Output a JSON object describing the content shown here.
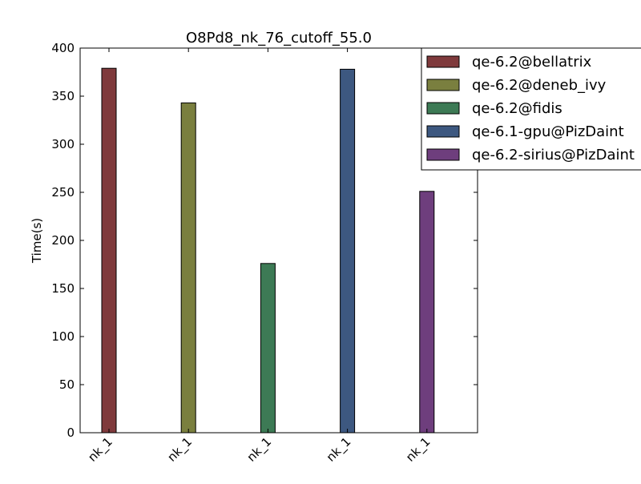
{
  "chart_data": {
    "type": "bar",
    "title": "O8Pd8_nk_76_cutoff_55.0",
    "xlabel": "",
    "ylabel": "Time(s)",
    "ylim": [
      0,
      400
    ],
    "yticks": [
      0,
      50,
      100,
      150,
      200,
      250,
      300,
      350,
      400
    ],
    "categories": [
      "nk_1",
      "nk_1",
      "nk_1",
      "nk_1",
      "nk_1"
    ],
    "grid": false,
    "legend_position": "top-right",
    "series": [
      {
        "name": "qe-6.2@bellatrix",
        "color": "#7f3a3c",
        "values": [
          379,
          null,
          null,
          null,
          null
        ]
      },
      {
        "name": "qe-6.2@deneb_ivy",
        "color": "#7a7f3f",
        "values": [
          null,
          343,
          null,
          null,
          null
        ]
      },
      {
        "name": "qe-6.2@fidis",
        "color": "#3d7a55",
        "values": [
          null,
          null,
          176,
          null,
          null
        ]
      },
      {
        "name": "qe-6.1-gpu@PizDaint",
        "color": "#3d5880",
        "values": [
          null,
          null,
          null,
          378,
          null
        ]
      },
      {
        "name": "qe-6.2-sirius@PizDaint",
        "color": "#6e3e7d",
        "values": [
          null,
          null,
          null,
          null,
          251
        ]
      }
    ]
  }
}
